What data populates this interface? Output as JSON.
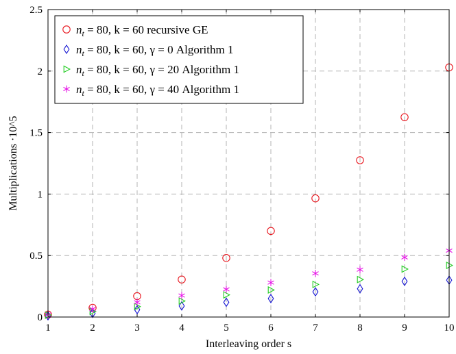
{
  "chart_data": {
    "type": "scatter",
    "title": "",
    "xlabel": "Interleaving order s",
    "ylabel": "Multiplications ·10^5",
    "xlim": [
      1,
      10
    ],
    "ylim": [
      0,
      2.5
    ],
    "xticks": [
      1,
      2,
      3,
      4,
      5,
      6,
      7,
      8,
      9,
      10
    ],
    "yticks": [
      0,
      0.5,
      1,
      1.5,
      2,
      2.5
    ],
    "ytick_labels": [
      "0",
      "0.5",
      "1",
      "1.5",
      "2",
      "2.5"
    ],
    "grid": true,
    "legend_position": "top-left",
    "series": [
      {
        "name": "n_t = 80, k = 60 recursive GE",
        "marker": "circle",
        "color": "#e8141c",
        "x": [
          1,
          2,
          3,
          4,
          5,
          6,
          7,
          8,
          9,
          10
        ],
        "values": [
          0.02,
          0.075,
          0.17,
          0.305,
          0.48,
          0.7,
          0.965,
          1.275,
          1.625,
          2.03
        ]
      },
      {
        "name": "n_t = 80, k = 60, γ = 0 Algorithm 1",
        "marker": "diamond",
        "color": "#1414d2",
        "x": [
          1,
          2,
          3,
          4,
          5,
          6,
          7,
          8,
          9,
          10
        ],
        "values": [
          0.01,
          0.03,
          0.06,
          0.09,
          0.12,
          0.15,
          0.205,
          0.23,
          0.29,
          0.3
        ]
      },
      {
        "name": "n_t = 80, k = 60, γ = 20 Algorithm 1",
        "marker": "triangle-right",
        "color": "#22cc22",
        "x": [
          1,
          2,
          3,
          4,
          5,
          6,
          7,
          8,
          9,
          10
        ],
        "values": [
          0.015,
          0.045,
          0.085,
          0.13,
          0.18,
          0.22,
          0.265,
          0.305,
          0.39,
          0.42
        ]
      },
      {
        "name": "n_t = 80, k = 60, γ = 40 Algorithm 1",
        "marker": "star",
        "color": "#e614e6",
        "x": [
          1,
          2,
          3,
          4,
          5,
          6,
          7,
          8,
          9,
          10
        ],
        "values": [
          0.02,
          0.065,
          0.12,
          0.175,
          0.225,
          0.28,
          0.355,
          0.385,
          0.485,
          0.54
        ]
      }
    ],
    "legend_labels": [
      {
        "pre": "n",
        "sub": "t",
        "rest": " = 80, k = 60 recursive GE"
      },
      {
        "pre": "n",
        "sub": "t",
        "rest": " = 80, k = 60, γ = 0 Algorithm 1"
      },
      {
        "pre": "n",
        "sub": "t",
        "rest": " = 80, k = 60, γ = 20 Algorithm 1"
      },
      {
        "pre": "n",
        "sub": "t",
        "rest": " = 80, k = 60, γ = 40 Algorithm 1"
      }
    ]
  }
}
